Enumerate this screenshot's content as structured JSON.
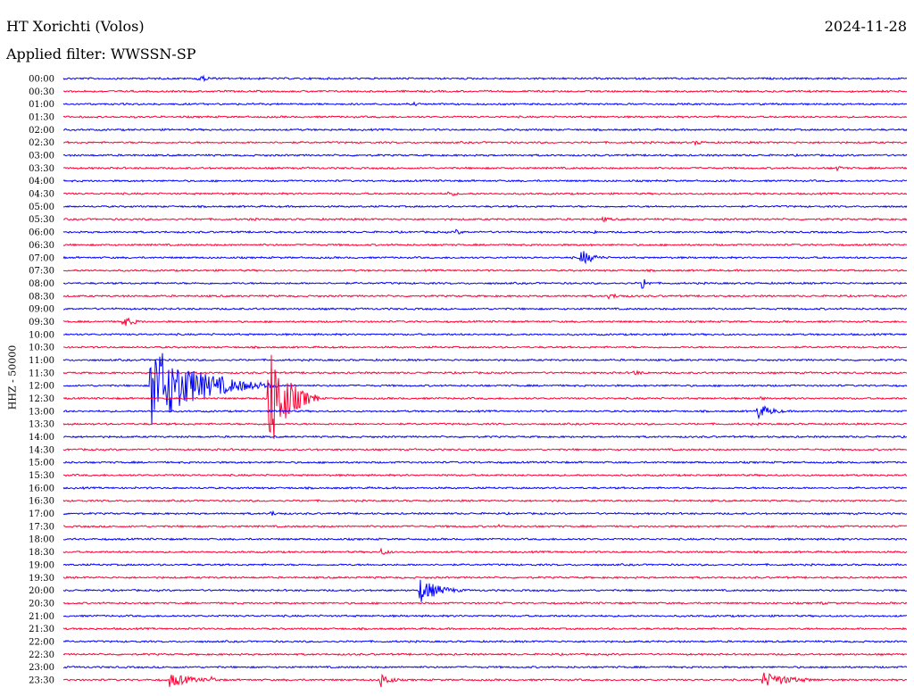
{
  "header": {
    "station": "HT Xorichti (Volos)",
    "filter": "Applied filter: WWSSN-SP",
    "date": "2024-11-28"
  },
  "colors": {
    "even_row": "#0000ff",
    "odd_row": "#ff0033",
    "text": "#000000",
    "background": "#ffffff"
  },
  "chart_data": {
    "type": "line",
    "title": "HT Xorichti (Volos)",
    "subtitle": "Applied filter: WWSSN-SP",
    "ylabel": "HHZ - 50000",
    "xlabel": "",
    "grid": false,
    "row_minutes": 30,
    "row_labels": [
      "00:00",
      "00:30",
      "01:00",
      "01:30",
      "02:00",
      "02:30",
      "03:00",
      "03:30",
      "04:00",
      "04:30",
      "05:00",
      "05:30",
      "06:00",
      "06:30",
      "07:00",
      "07:30",
      "08:00",
      "08:30",
      "09:00",
      "09:30",
      "10:00",
      "10:30",
      "11:00",
      "11:30",
      "12:00",
      "12:30",
      "13:00",
      "13:30",
      "14:00",
      "14:30",
      "15:00",
      "15:30",
      "16:00",
      "16:30",
      "17:00",
      "17:30",
      "18:00",
      "18:30",
      "19:00",
      "19:30",
      "20:00",
      "20:30",
      "21:00",
      "21:30",
      "22:00",
      "22:30",
      "23:00",
      "23:30"
    ],
    "events": [
      {
        "row": 0,
        "minute": 4.8,
        "amplitude": 4,
        "duration": 1.5
      },
      {
        "row": 2,
        "minute": 12.5,
        "amplitude": 2,
        "duration": 1.0
      },
      {
        "row": 3,
        "minute": 23.2,
        "amplitude": 2,
        "duration": 1.0
      },
      {
        "row": 5,
        "minute": 22.5,
        "amplitude": 3,
        "duration": 1.0
      },
      {
        "row": 7,
        "minute": 27.5,
        "amplitude": 3,
        "duration": 1.0
      },
      {
        "row": 9,
        "minute": 13.7,
        "amplitude": 4,
        "duration": 0.8
      },
      {
        "row": 11,
        "minute": 6.7,
        "amplitude": 2,
        "duration": 1.0
      },
      {
        "row": 11,
        "minute": 19.2,
        "amplitude": 3,
        "duration": 1.0
      },
      {
        "row": 12,
        "minute": 14.0,
        "amplitude": 3,
        "duration": 0.8
      },
      {
        "row": 12,
        "minute": 18.9,
        "amplitude": 2,
        "duration": 0.8
      },
      {
        "row": 14,
        "minute": 18.4,
        "amplitude": 10,
        "duration": 1.3
      },
      {
        "row": 16,
        "minute": 20.6,
        "amplitude": 9,
        "duration": 0.5
      },
      {
        "row": 17,
        "minute": 19.4,
        "amplitude": 3,
        "duration": 2.0
      },
      {
        "row": 19,
        "minute": 2.1,
        "amplitude": 7,
        "duration": 1.2
      },
      {
        "row": 23,
        "minute": 20.3,
        "amplitude": 3,
        "duration": 1.3
      },
      {
        "row": 24,
        "minute": 3.1,
        "amplitude": 50,
        "duration": 4.5
      },
      {
        "row": 24,
        "minute": 5.7,
        "amplitude": 10,
        "duration": 2.0
      },
      {
        "row": 25,
        "minute": 7.3,
        "amplitude": 70,
        "duration": 1.8
      },
      {
        "row": 25,
        "minute": 24.8,
        "amplitude": 3,
        "duration": 0.5
      },
      {
        "row": 26,
        "minute": 24.7,
        "amplitude": 9,
        "duration": 1.5
      },
      {
        "row": 34,
        "minute": 7.4,
        "amplitude": 3,
        "duration": 1.0
      },
      {
        "row": 35,
        "minute": 15.5,
        "amplitude": 2,
        "duration": 1.0
      },
      {
        "row": 37,
        "minute": 11.3,
        "amplitude": 4,
        "duration": 1.0
      },
      {
        "row": 40,
        "minute": 12.7,
        "amplitude": 14,
        "duration": 2.0
      },
      {
        "row": 41,
        "minute": 27.0,
        "amplitude": 2,
        "duration": 0.5
      },
      {
        "row": 47,
        "minute": 3.8,
        "amplitude": 8,
        "duration": 2.5
      },
      {
        "row": 47,
        "minute": 5.3,
        "amplitude": 4,
        "duration": 0.6
      },
      {
        "row": 47,
        "minute": 11.3,
        "amplitude": 9,
        "duration": 1.0
      },
      {
        "row": 47,
        "minute": 24.9,
        "amplitude": 9,
        "duration": 3.0
      }
    ]
  }
}
